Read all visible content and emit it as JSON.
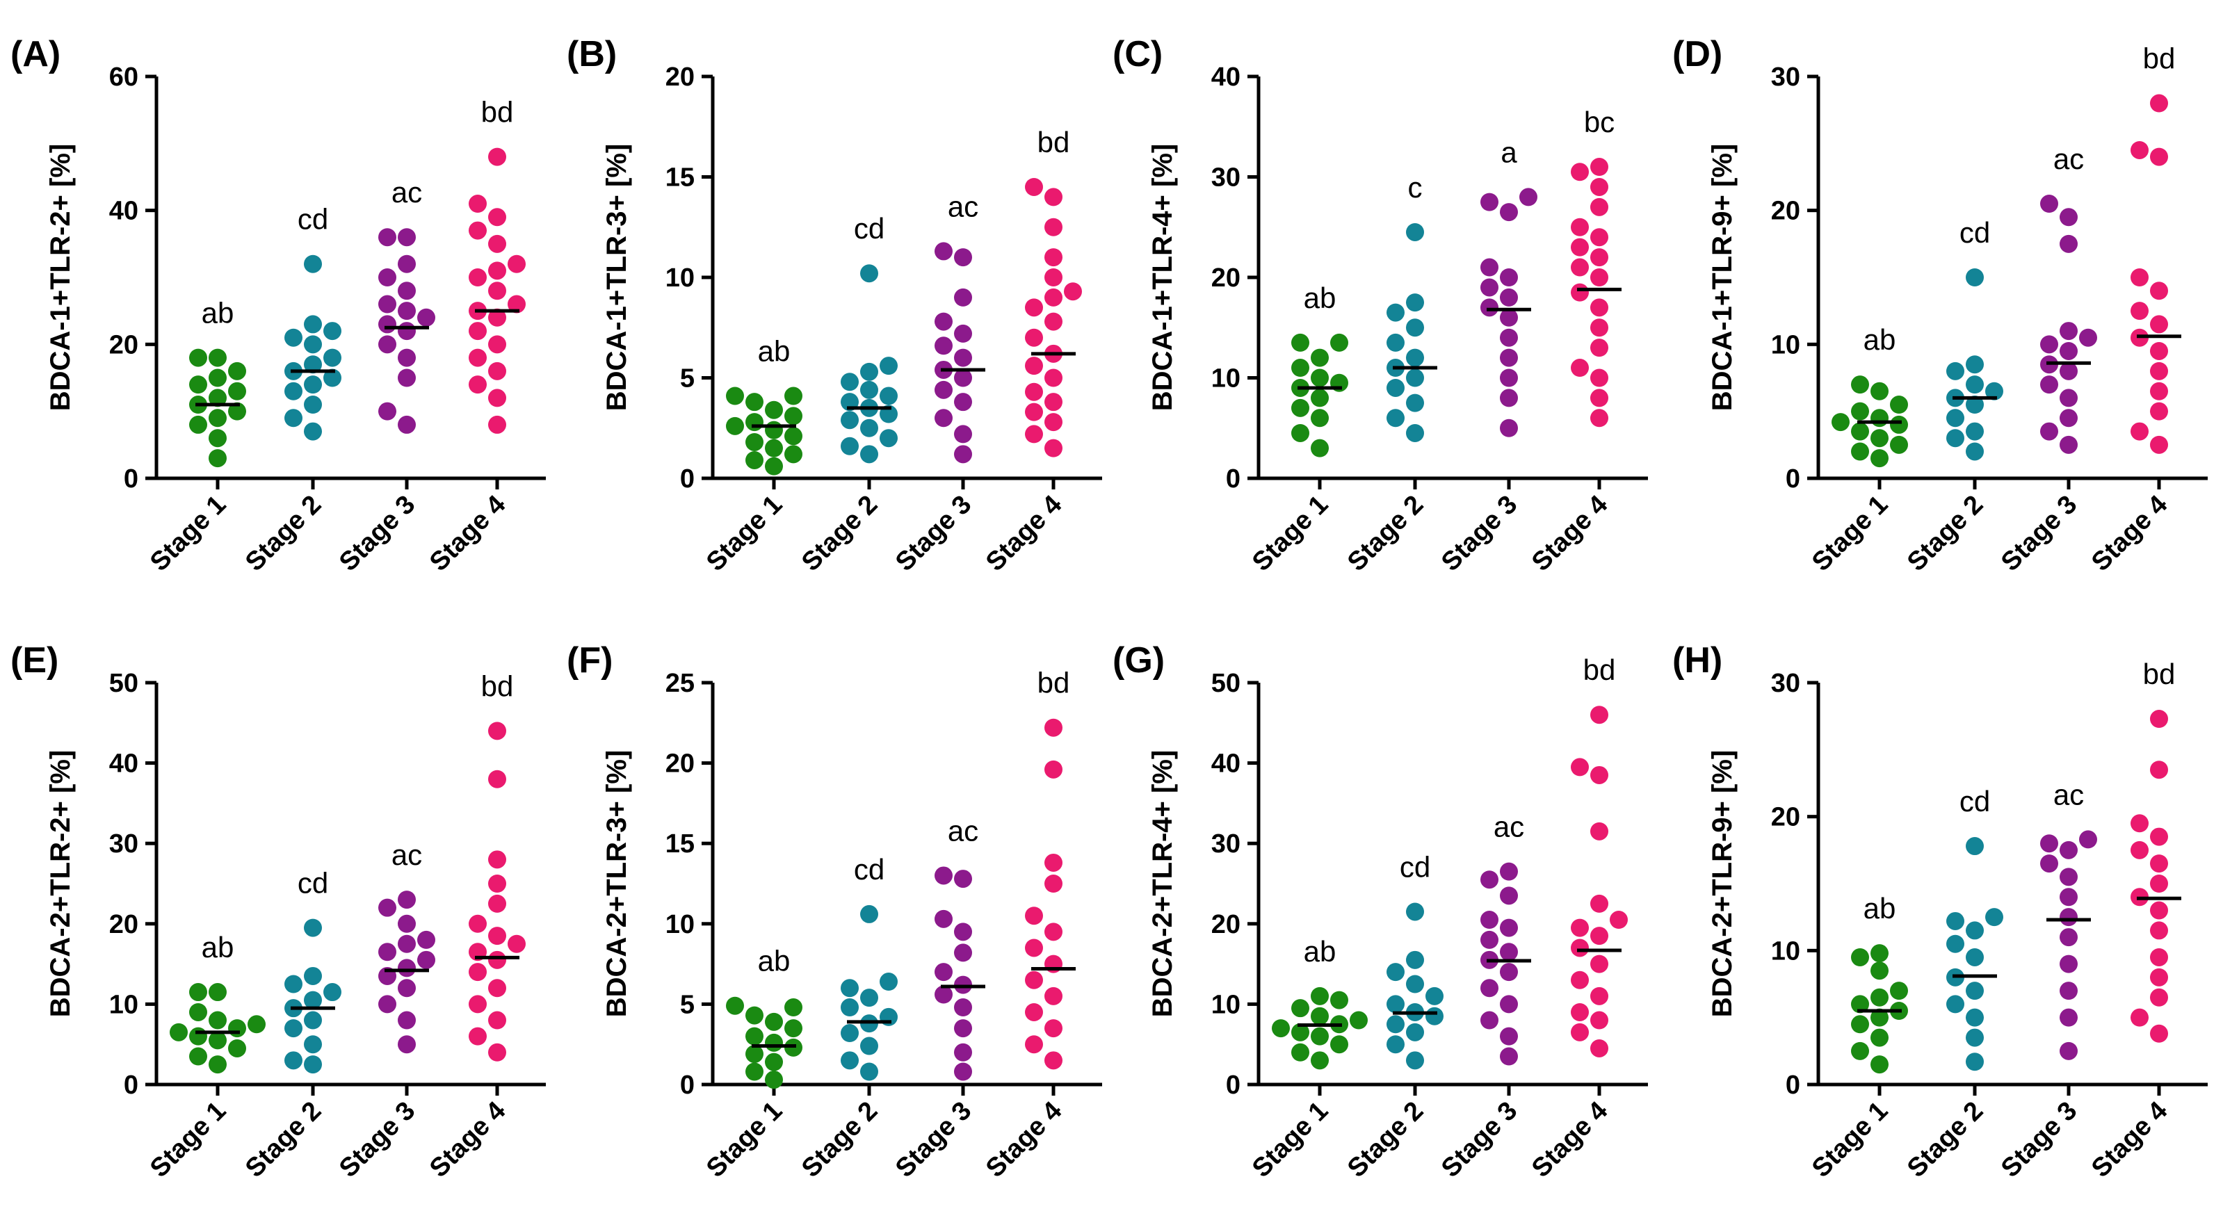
{
  "colors": {
    "stage1": "#1a8a12",
    "stage2": "#138496",
    "stage3": "#8c1a8c",
    "stage4": "#ea1a6e"
  },
  "chart_data": [
    {
      "type": "scatter",
      "panel": "(A)",
      "ylabel": "BDCA-1+TLR-2+ [%]",
      "categories": [
        "Stage 1",
        "Stage 2",
        "Stage 3",
        "Stage 4"
      ],
      "ylim": [
        0,
        60
      ],
      "yticks": [
        0,
        20,
        40,
        60
      ],
      "medians": [
        11,
        16,
        22.5,
        25
      ],
      "annotations": [
        "ab",
        "cd",
        "ac",
        "bd"
      ],
      "points": [
        [
          3,
          6,
          8,
          9,
          10,
          11,
          12,
          13,
          14,
          15,
          16,
          18,
          18
        ],
        [
          7,
          9,
          11,
          13,
          14,
          15,
          16,
          17,
          18,
          20,
          21,
          22,
          23,
          32
        ],
        [
          8,
          10,
          15,
          18,
          20,
          22,
          23,
          24,
          25,
          26,
          28,
          30,
          32,
          36,
          36
        ],
        [
          8,
          12,
          14,
          16,
          18,
          20,
          22,
          24,
          25,
          26,
          28,
          30,
          31,
          32,
          35,
          37,
          39,
          41,
          48
        ]
      ]
    },
    {
      "type": "scatter",
      "panel": "(B)",
      "ylabel": "BDCA-1+TLR-3+ [%]",
      "categories": [
        "Stage 1",
        "Stage 2",
        "Stage 3",
        "Stage 4"
      ],
      "ylim": [
        0,
        20
      ],
      "yticks": [
        0,
        5,
        10,
        15,
        20
      ],
      "medians": [
        2.6,
        3.5,
        5.4,
        6.2
      ],
      "annotations": [
        "ab",
        "cd",
        "ac",
        "bd"
      ],
      "points": [
        [
          0.6,
          0.9,
          1.2,
          1.5,
          1.8,
          2.1,
          2.4,
          2.6,
          2.8,
          3.1,
          3.4,
          3.8,
          4.1,
          4.1
        ],
        [
          1.2,
          1.6,
          2.0,
          2.5,
          2.9,
          3.2,
          3.5,
          3.8,
          4.1,
          4.4,
          4.8,
          5.3,
          5.6,
          10.2
        ],
        [
          1.2,
          2.2,
          3.0,
          3.8,
          4.4,
          5.0,
          5.4,
          6.0,
          6.6,
          7.2,
          7.8,
          9.0,
          11.0,
          11.3
        ],
        [
          1.5,
          2.2,
          2.8,
          3.3,
          3.8,
          4.3,
          5.0,
          5.6,
          6.2,
          7.0,
          7.8,
          8.5,
          9.0,
          9.3,
          10.0,
          11.0,
          12.5,
          14.0,
          14.5
        ]
      ]
    },
    {
      "type": "scatter",
      "panel": "(C)",
      "ylabel": "BDCA-1+TLR-4+ [%]",
      "categories": [
        "Stage 1",
        "Stage 2",
        "Stage 3",
        "Stage 4"
      ],
      "ylim": [
        0,
        40
      ],
      "yticks": [
        0,
        10,
        20,
        30,
        40
      ],
      "medians": [
        9,
        11,
        16.8,
        18.8
      ],
      "annotations": [
        "ab",
        "c",
        "a",
        "bc"
      ],
      "points": [
        [
          3,
          4.5,
          6,
          7,
          8,
          9,
          9.5,
          10,
          11,
          12,
          13.5,
          13.5
        ],
        [
          4.5,
          6,
          7.5,
          9,
          10,
          11,
          12,
          13.5,
          15,
          16.5,
          17.5,
          24.5
        ],
        [
          5,
          8,
          10,
          12,
          14,
          16,
          17,
          18,
          19,
          20,
          21,
          26.5,
          27.5,
          28
        ],
        [
          6,
          8,
          10,
          11,
          13,
          15,
          17,
          18.5,
          20,
          21,
          22,
          23,
          24,
          25,
          27,
          29,
          30.5,
          31
        ]
      ]
    },
    {
      "type": "scatter",
      "panel": "(D)",
      "ylabel": "BDCA-1+TLR-9+ [%]",
      "categories": [
        "Stage 1",
        "Stage 2",
        "Stage 3",
        "Stage 4"
      ],
      "ylim": [
        0,
        30
      ],
      "yticks": [
        0,
        10,
        20,
        30
      ],
      "medians": [
        4.2,
        6,
        8.6,
        10.6
      ],
      "annotations": [
        "ab",
        "cd",
        "ac",
        "bd"
      ],
      "points": [
        [
          1.5,
          2,
          2.5,
          3,
          3.5,
          4,
          4.2,
          4.5,
          5,
          5.5,
          6.5,
          7
        ],
        [
          2,
          3,
          3.5,
          4.5,
          5.5,
          6,
          6.5,
          7,
          8,
          8.5,
          15
        ],
        [
          2.5,
          3.5,
          4.5,
          6,
          7,
          8,
          8.5,
          9.5,
          10,
          10.5,
          11,
          17.5,
          19.5,
          20.5
        ],
        [
          2.5,
          3.5,
          5,
          6.5,
          8,
          9.5,
          10.5,
          11.5,
          12.5,
          14,
          15,
          24,
          24.5,
          28
        ]
      ]
    },
    {
      "type": "scatter",
      "panel": "(E)",
      "ylabel": "BDCA-2+TLR-2+ [%]",
      "categories": [
        "Stage 1",
        "Stage 2",
        "Stage 3",
        "Stage 4"
      ],
      "ylim": [
        0,
        50
      ],
      "yticks": [
        0,
        10,
        20,
        30,
        40,
        50
      ],
      "medians": [
        6.5,
        9.5,
        14.2,
        15.8
      ],
      "annotations": [
        "ab",
        "cd",
        "ac",
        "bd"
      ],
      "points": [
        [
          2.5,
          3.5,
          4.5,
          5.5,
          6,
          6.5,
          7,
          7.5,
          8,
          9,
          11.5,
          11.5
        ],
        [
          2.5,
          3,
          5,
          7,
          8,
          9.5,
          10.5,
          11.5,
          12.5,
          13.5,
          19.5
        ],
        [
          5,
          8,
          10,
          12,
          13.5,
          14.5,
          15.5,
          16.5,
          17.5,
          18,
          20,
          22,
          23
        ],
        [
          4,
          6,
          8,
          10,
          12,
          14,
          15.5,
          16.5,
          17.5,
          18.5,
          20,
          22.5,
          25,
          28,
          38,
          44
        ]
      ]
    },
    {
      "type": "scatter",
      "panel": "(F)",
      "ylabel": "BDCA-2+TLR-3+ [%]",
      "categories": [
        "Stage 1",
        "Stage 2",
        "Stage 3",
        "Stage 4"
      ],
      "ylim": [
        0,
        25
      ],
      "yticks": [
        0,
        5,
        10,
        15,
        20,
        25
      ],
      "medians": [
        2.4,
        3.9,
        6.1,
        7.2
      ],
      "annotations": [
        "ab",
        "cd",
        "ac",
        "bd"
      ],
      "points": [
        [
          0.3,
          0.8,
          1.4,
          1.9,
          2.3,
          2.6,
          3.0,
          3.5,
          3.9,
          4.3,
          4.8,
          4.9
        ],
        [
          0.8,
          1.5,
          2.4,
          3.2,
          3.8,
          4.2,
          4.8,
          5.4,
          6.0,
          6.4,
          10.6
        ],
        [
          0.8,
          2.0,
          3.5,
          4.8,
          5.6,
          6.2,
          7.0,
          8.2,
          9.5,
          10.3,
          12.8,
          13.0
        ],
        [
          1.5,
          2.5,
          3.5,
          4.5,
          5.5,
          6.5,
          7.5,
          8.5,
          9.5,
          10.5,
          12.5,
          13.8,
          19.6,
          22.2
        ]
      ]
    },
    {
      "type": "scatter",
      "panel": "(G)",
      "ylabel": "BDCA-2+TLR-4+ [%]",
      "categories": [
        "Stage 1",
        "Stage 2",
        "Stage 3",
        "Stage 4"
      ],
      "ylim": [
        0,
        50
      ],
      "yticks": [
        0,
        10,
        20,
        30,
        40,
        50
      ],
      "medians": [
        7.4,
        8.9,
        15.4,
        16.7
      ],
      "annotations": [
        "ab",
        "cd",
        "ac",
        "bd"
      ],
      "points": [
        [
          3,
          4,
          5,
          6,
          6.5,
          7,
          7.5,
          8,
          8.5,
          9.5,
          10.5,
          11
        ],
        [
          3,
          5,
          6.5,
          7.5,
          8.5,
          9,
          10,
          11,
          12.5,
          14,
          15.5,
          21.5
        ],
        [
          3.5,
          6,
          8,
          10,
          12,
          14,
          15.5,
          16.5,
          18,
          19.5,
          20.5,
          23.5,
          25.5,
          26.5
        ],
        [
          4.5,
          6.5,
          8,
          9,
          11,
          13,
          15,
          17,
          18.5,
          19.5,
          20.5,
          22.5,
          31.5,
          38.5,
          39.5,
          46
        ]
      ]
    },
    {
      "type": "scatter",
      "panel": "(H)",
      "ylabel": "BDCA-2+TLR-9+ [%]",
      "categories": [
        "Stage 1",
        "Stage 2",
        "Stage 3",
        "Stage 4"
      ],
      "ylim": [
        0,
        30
      ],
      "yticks": [
        0,
        10,
        20,
        30
      ],
      "medians": [
        5.5,
        8.1,
        12.3,
        13.9
      ],
      "annotations": [
        "ab",
        "cd",
        "ac",
        "bd"
      ],
      "points": [
        [
          1.5,
          2.5,
          3.5,
          4.5,
          5,
          5.5,
          6,
          6.5,
          7,
          8.5,
          9.5,
          9.8
        ],
        [
          1.7,
          3.5,
          5,
          6,
          7,
          8,
          9.5,
          10.5,
          11.5,
          12.2,
          12.5,
          17.8
        ],
        [
          2.5,
          5,
          7,
          9,
          11,
          12.5,
          14,
          15.5,
          16.5,
          17.5,
          18,
          18.3
        ],
        [
          3.8,
          5,
          6.5,
          8,
          9.5,
          11.5,
          13,
          14,
          15,
          16.5,
          17.5,
          18.5,
          19.5,
          23.5,
          27.3
        ]
      ]
    }
  ]
}
